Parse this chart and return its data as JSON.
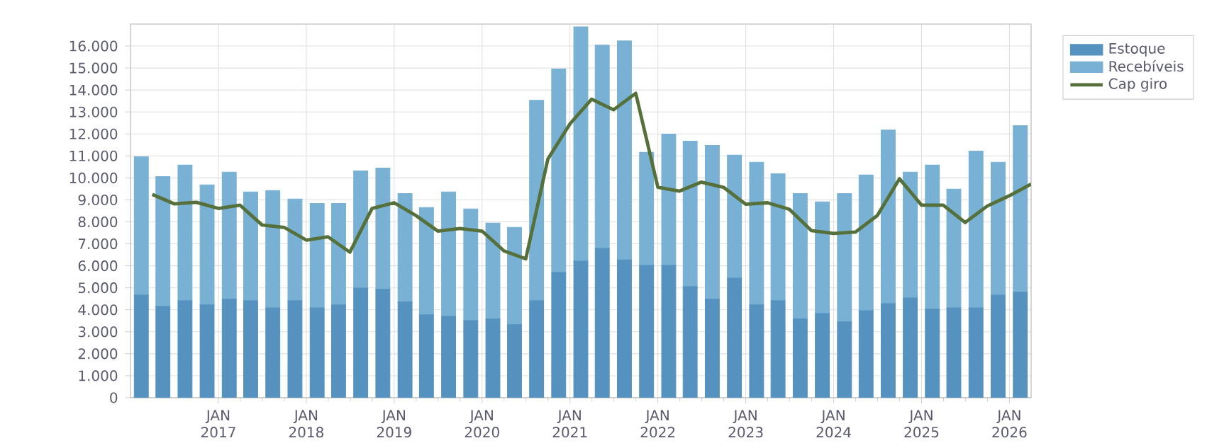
{
  "chart_data": {
    "type": "bar",
    "stacked": true,
    "grid": true,
    "legend": "top right",
    "xlim": [
      "2016-01-01",
      "2026-04-01"
    ],
    "xticks": [
      {
        "value": "2017-01-01",
        "label": "JAN 2017"
      },
      {
        "value": "2018-01-01",
        "label": "JAN 2018"
      },
      {
        "value": "2019-01-01",
        "label": "JAN 2019"
      },
      {
        "value": "2020-01-01",
        "label": "JAN 2020"
      },
      {
        "value": "2021-01-01",
        "label": "JAN 2021"
      },
      {
        "value": "2022-01-01",
        "label": "JAN 2022"
      },
      {
        "value": "2023-01-01",
        "label": "JAN 2023"
      },
      {
        "value": "2024-01-01",
        "label": "JAN 2024"
      },
      {
        "value": "2025-01-01",
        "label": "JAN 2025"
      },
      {
        "value": "2026-01-01",
        "label": "JAN 2026"
      }
    ],
    "ylim": [
      0,
      17000
    ],
    "yticks": [
      0,
      {
        "value": 1000,
        "label": "1.000"
      },
      {
        "value": 2000,
        "label": "2.000"
      },
      {
        "value": 3000,
        "label": "3.000"
      },
      {
        "value": 4000,
        "label": "4.000"
      },
      {
        "value": 5000,
        "label": "5.000"
      },
      {
        "value": 6000,
        "label": "6.000"
      },
      {
        "value": 7000,
        "label": "7.000"
      },
      {
        "value": 8000,
        "label": "8.000"
      },
      {
        "value": 9000,
        "label": "9.000"
      },
      {
        "value": 10000,
        "label": "10.000"
      },
      {
        "value": 11000,
        "label": "11.000"
      },
      {
        "value": 12000,
        "label": "12.000"
      },
      {
        "value": 13000,
        "label": "13.000"
      },
      {
        "value": 14000,
        "label": "14.000"
      },
      {
        "value": 15000,
        "label": "15.000"
      },
      {
        "value": 16000,
        "label": "16.000"
      }
    ],
    "x": [
      "2016-02-15",
      "2016-05-15",
      "2016-08-15",
      "2016-11-15",
      "2017-02-15",
      "2017-05-15",
      "2017-08-15",
      "2017-11-15",
      "2018-02-15",
      "2018-05-15",
      "2018-08-15",
      "2018-11-15",
      "2019-02-15",
      "2019-05-15",
      "2019-08-15",
      "2019-11-15",
      "2020-02-15",
      "2020-05-15",
      "2020-08-15",
      "2020-11-15",
      "2021-02-15",
      "2021-05-15",
      "2021-08-15",
      "2021-11-15",
      "2022-02-15",
      "2022-05-15",
      "2022-08-15",
      "2022-11-15",
      "2023-02-15",
      "2023-05-15",
      "2023-08-15",
      "2023-11-15",
      "2024-02-15",
      "2024-05-15",
      "2024-08-15",
      "2024-11-15",
      "2025-02-15",
      "2025-05-15",
      "2025-08-15",
      "2025-11-15",
      "2026-02-15"
    ],
    "series": [
      {
        "name": "Estoque",
        "color": "#5592bf",
        "values": [
          4670,
          4150,
          4410,
          4220,
          4480,
          4410,
          4090,
          4410,
          4090,
          4220,
          4990,
          4930,
          4350,
          3770,
          3700,
          3510,
          3580,
          3320,
          4410,
          5700,
          6210,
          6790,
          6270,
          6020,
          6020,
          5050,
          4480,
          5440,
          4220,
          4410,
          3580,
          3830,
          3450,
          3960,
          4280,
          4540,
          4030,
          4090,
          4090,
          4670,
          4800
        ]
      },
      {
        "name": "Recebíveis",
        "color": "#78b1d3",
        "values": [
          6290,
          5910,
          6170,
          5460,
          5780,
          4950,
          5330,
          4630,
          4750,
          4620,
          5330,
          5520,
          4940,
          4880,
          5660,
          5080,
          4360,
          4430,
          9120,
          9250,
          10660,
          9250,
          9960,
          5140,
          5970,
          6620,
          7000,
          5590,
          6490,
          5780,
          5710,
          5080,
          5840,
          6170,
          7900,
          5720,
          6550,
          5400,
          7130,
          6040,
          7580
        ]
      },
      {
        "name": "Cap giro",
        "type": "line",
        "color": "#55703a",
        "x": [
          "2016-04-01",
          "2016-07-01",
          "2016-10-01",
          "2017-01-01",
          "2017-04-01",
          "2017-07-01",
          "2017-10-01",
          "2018-01-01",
          "2018-04-01",
          "2018-07-01",
          "2018-10-01",
          "2019-01-01",
          "2019-04-01",
          "2019-07-01",
          "2019-10-01",
          "2020-01-01",
          "2020-04-01",
          "2020-07-01",
          "2020-10-01",
          "2021-01-01",
          "2021-04-01",
          "2021-07-01",
          "2021-10-01",
          "2022-01-01",
          "2022-04-01",
          "2022-07-01",
          "2022-10-01",
          "2023-01-01",
          "2023-04-01",
          "2023-07-01",
          "2023-10-01",
          "2024-01-01",
          "2024-04-01",
          "2024-07-01",
          "2024-10-01",
          "2025-01-01",
          "2025-04-01",
          "2025-07-01",
          "2025-10-01",
          "2026-01-01",
          "2026-04-01"
        ],
        "values": [
          9250,
          8820,
          8890,
          8610,
          8760,
          7860,
          7750,
          7170,
          7320,
          6620,
          8610,
          8870,
          8290,
          7580,
          7700,
          7580,
          6680,
          6320,
          10860,
          12460,
          13580,
          13100,
          13850,
          9570,
          9400,
          9810,
          9570,
          8800,
          8870,
          8570,
          7600,
          7470,
          7540,
          8290,
          9960,
          8760,
          8760,
          7970,
          8720,
          9190,
          9720
        ]
      }
    ]
  }
}
